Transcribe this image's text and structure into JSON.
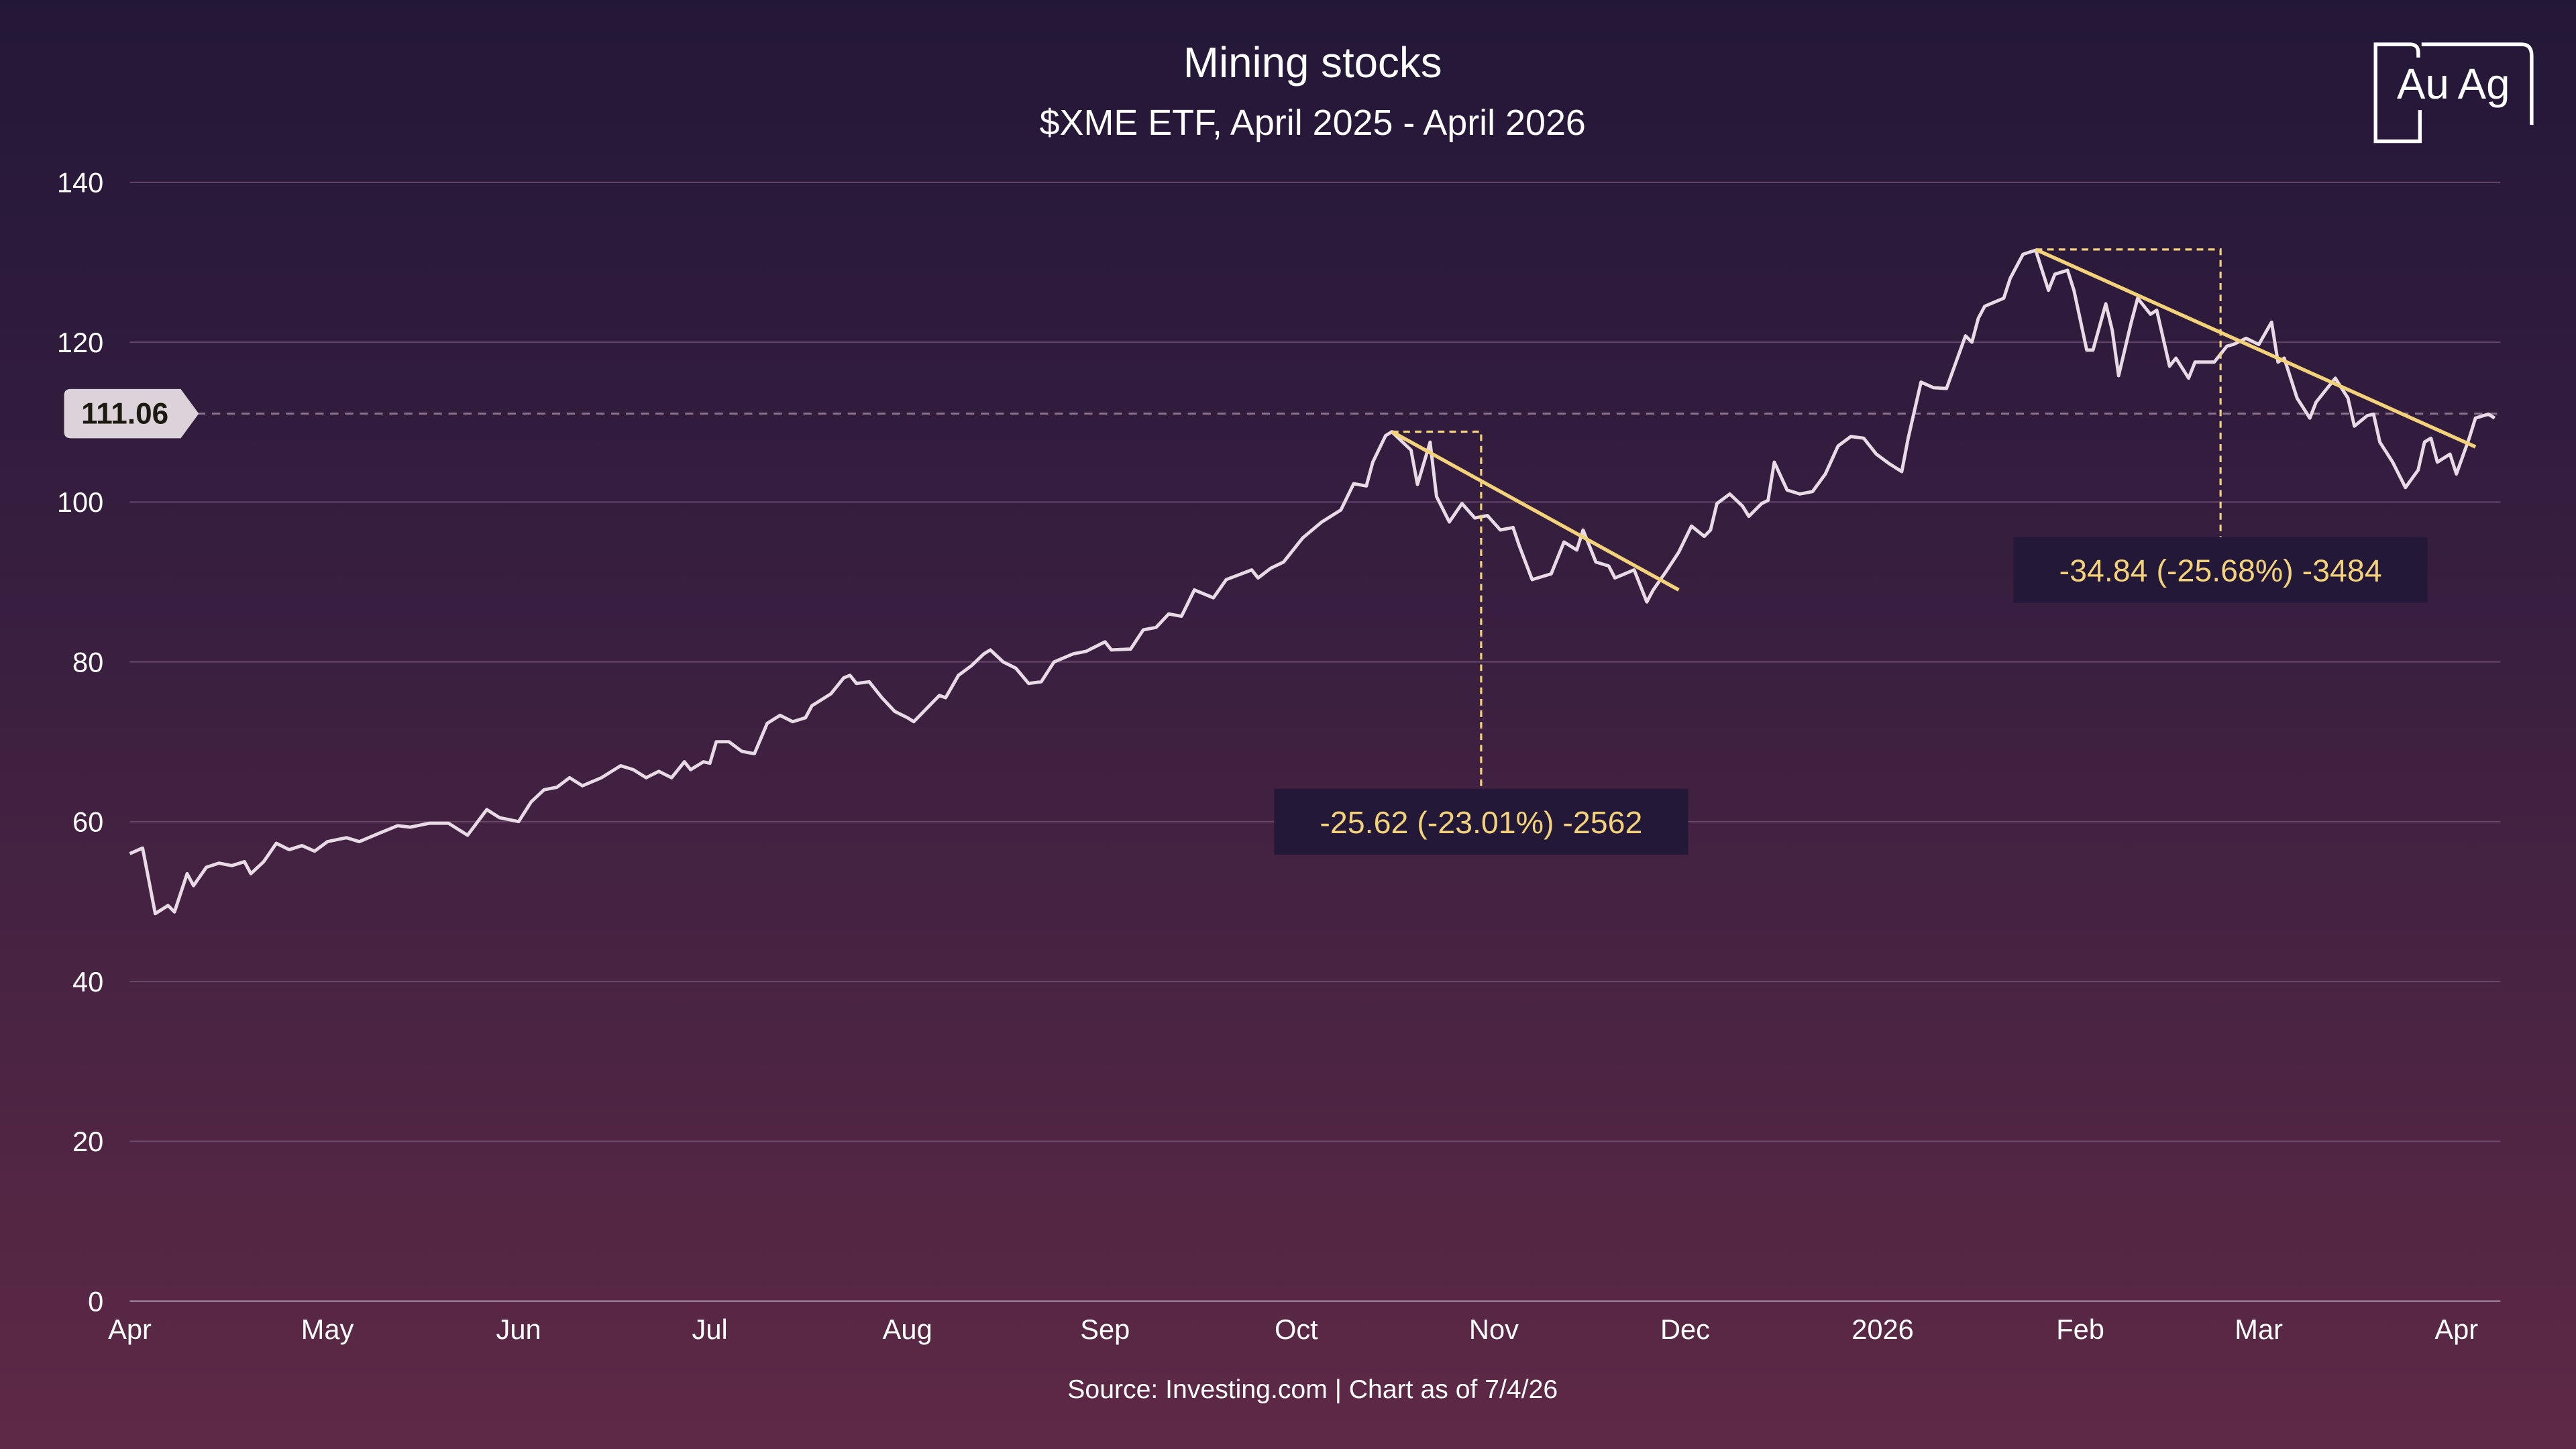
{
  "logo": {
    "text_left": "Au",
    "text_right": "Ag"
  },
  "source": "Source: Investing.com | Chart as of 7/4/26",
  "colors": {
    "line": "#e8dbe6",
    "annotation": "#f3d27a",
    "grid": "#7a5a7c",
    "label_bg": "#231838",
    "price_tag_bg": "#dcd3da"
  },
  "chart_data": {
    "type": "line",
    "title": "Mining stocks",
    "subtitle": "$XME ETF, April 2025 - April 2026",
    "xlabel": "",
    "ylabel": "",
    "x_unit": "days since 2025-04-01",
    "xlim": [
      0,
      371
    ],
    "ylim": [
      0,
      140
    ],
    "yticks": [
      0,
      20,
      40,
      60,
      80,
      100,
      120,
      140
    ],
    "grid": true,
    "xticks": [
      {
        "day": 0,
        "label": "Apr"
      },
      {
        "day": 31,
        "label": "May"
      },
      {
        "day": 61,
        "label": "Jun"
      },
      {
        "day": 91,
        "label": "Jul"
      },
      {
        "day": 122,
        "label": "Aug"
      },
      {
        "day": 153,
        "label": "Sep"
      },
      {
        "day": 183,
        "label": "Oct"
      },
      {
        "day": 214,
        "label": "Nov"
      },
      {
        "day": 244,
        "label": "Dec"
      },
      {
        "day": 275,
        "label": "2026"
      },
      {
        "day": 306,
        "label": "Feb"
      },
      {
        "day": 334,
        "label": "Mar"
      },
      {
        "day": 365,
        "label": "Apr"
      }
    ],
    "current_price": {
      "value": 111.06,
      "label": "111.06"
    },
    "series": [
      {
        "name": "XME",
        "x": [
          0,
          2,
          4,
          6,
          7,
          9,
          10,
          12,
          14,
          16,
          18,
          19,
          21,
          23,
          25,
          27,
          29,
          31,
          34,
          36,
          39,
          42,
          44,
          47,
          50,
          53,
          56,
          58,
          61,
          63,
          65,
          67,
          69,
          71,
          74,
          77,
          79,
          81,
          83,
          85,
          87,
          88,
          90,
          91,
          92,
          94,
          96,
          98,
          100,
          102,
          104,
          106,
          107,
          110,
          112,
          113,
          114,
          116,
          118,
          120,
          122,
          123,
          127,
          128,
          130,
          132,
          134,
          135,
          137,
          139,
          141,
          143,
          145,
          148,
          150,
          153,
          154,
          157,
          159,
          161,
          163,
          165,
          167,
          170,
          172,
          176,
          177,
          179,
          181,
          182,
          184,
          187,
          190,
          192,
          194,
          195,
          197,
          198,
          201,
          202,
          204,
          205,
          207,
          209,
          211,
          213,
          215,
          217,
          218,
          220,
          223,
          225,
          227,
          228,
          230,
          232,
          233,
          236,
          238,
          239,
          241,
          243,
          245,
          247,
          248,
          249,
          251,
          253,
          254,
          256,
          257,
          258,
          260,
          262,
          264,
          266,
          268,
          270,
          272,
          274,
          276,
          278,
          279,
          281,
          283,
          285,
          288,
          289,
          290,
          291,
          294,
          295,
          297,
          299,
          301,
          302,
          304,
          305,
          307,
          308,
          310,
          311,
          312,
          314,
          315,
          317,
          318,
          320,
          321,
          323,
          324,
          327,
          329,
          330,
          332,
          334,
          336,
          337,
          338,
          340,
          342,
          343,
          345,
          346,
          348,
          349,
          351,
          352,
          353,
          355,
          357,
          359,
          360,
          361,
          362,
          364,
          365,
          367,
          368,
          370,
          371
        ],
        "values": [
          56,
          56.7,
          48.5,
          49.5,
          48.7,
          53.5,
          52,
          54.3,
          54.8,
          54.5,
          55,
          53.5,
          55,
          57.3,
          56.5,
          57,
          56.3,
          57.5,
          58,
          57.5,
          58.5,
          59.5,
          59.3,
          59.8,
          59.8,
          58.3,
          61.5,
          60.5,
          60,
          62.5,
          64,
          64.3,
          65.5,
          64.5,
          65.5,
          67,
          66.5,
          65.5,
          66.3,
          65.5,
          67.5,
          66.5,
          67.5,
          67.3,
          70,
          70,
          68.8,
          68.5,
          72.3,
          73.3,
          72.5,
          73,
          74.5,
          76,
          78,
          78.3,
          77.3,
          77.5,
          75.5,
          73.8,
          73,
          72.5,
          75.8,
          75.5,
          78.3,
          79.5,
          81,
          81.5,
          80,
          79.2,
          77.3,
          77.5,
          80,
          81,
          81.3,
          82.5,
          81.5,
          81.6,
          84,
          84.3,
          86,
          85.7,
          89,
          88,
          90.3,
          91.5,
          90.5,
          91.7,
          92.5,
          93.5,
          95.5,
          97.5,
          99,
          102.3,
          102,
          105,
          108.3,
          108.8,
          106.5,
          102.2,
          107.5,
          100.7,
          97.5,
          99.8,
          98,
          98.3,
          96.5,
          96.8,
          94.5,
          90.3,
          91,
          95,
          94,
          96.5,
          92.5,
          92,
          90.5,
          91.5,
          87.5,
          89,
          91.3,
          93.7,
          97,
          95.7,
          96.5,
          99.8,
          101,
          99.5,
          98.2,
          99.8,
          100.2,
          105,
          101.5,
          101,
          101.3,
          103.5,
          107,
          108.2,
          108,
          106,
          104.8,
          103.8,
          108,
          115,
          114.3,
          114.2,
          120.8,
          120,
          123,
          124.5,
          125.5,
          128,
          131,
          131.5,
          126.5,
          128.5,
          129,
          126.5,
          119,
          119,
          124.8,
          121.5,
          115.8,
          122.5,
          125.5,
          123.5,
          124,
          117,
          118,
          115.5,
          117.5,
          117.5,
          119.5,
          119.7,
          120.5,
          119.7,
          122.5,
          117.5,
          118,
          113,
          110.5,
          112.5,
          114.5,
          115.5,
          113,
          109.5,
          110.8,
          111,
          107.5,
          105,
          101.8,
          104,
          107.5,
          108,
          105,
          106,
          103.5,
          108,
          110.5,
          111,
          110.5
        ]
      }
    ],
    "annotations": [
      {
        "trend_start": {
          "day": 198,
          "value": 108.8
        },
        "trend_end": {
          "day": 243,
          "value": 89
        },
        "box_end_day": 212,
        "label_value": 60,
        "label": "-25.62 (-23.01%) -2562"
      },
      {
        "trend_start": {
          "day": 299,
          "value": 131.6
        },
        "trend_end": {
          "day": 368,
          "value": 106.9
        },
        "box_end_day": 328,
        "label_value": 91.5,
        "label": "-34.84 (-25.68%) -3484"
      }
    ]
  }
}
